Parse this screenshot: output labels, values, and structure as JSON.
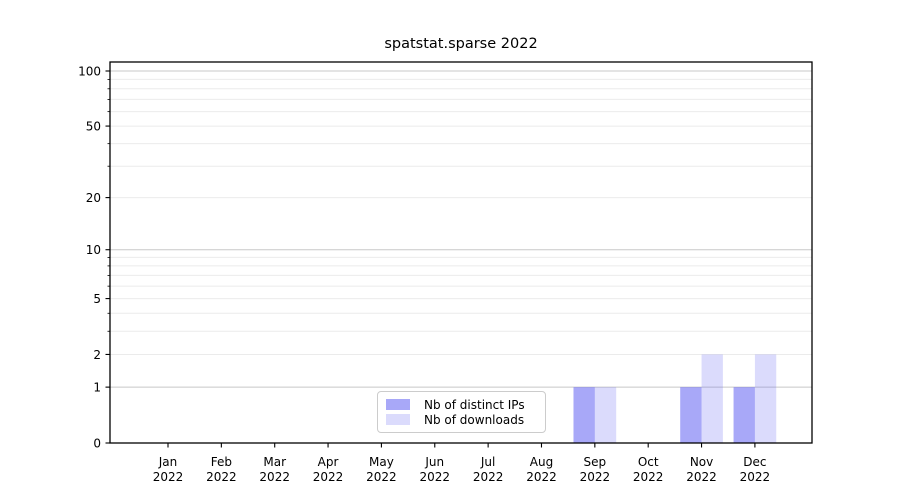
{
  "figure": {
    "background": "#ffffff"
  },
  "chart_data": {
    "type": "bar",
    "title": "spatstat.sparse 2022",
    "categories": [
      "Jan 2022",
      "Feb 2022",
      "Mar 2022",
      "Apr 2022",
      "May 2022",
      "Jun 2022",
      "Jul 2022",
      "Aug 2022",
      "Sep 2022",
      "Oct 2022",
      "Nov 2022",
      "Dec 2022"
    ],
    "series": [
      {
        "name": "Nb of distinct IPs",
        "fill": "rgba(100,100,243,0.56)",
        "values": [
          0,
          0,
          0,
          0,
          0,
          0,
          0,
          0,
          1,
          0,
          1,
          1
        ]
      },
      {
        "name": "Nb of downloads",
        "fill": "rgba(100,100,243,0.23)",
        "values": [
          0,
          0,
          0,
          0,
          0,
          0,
          0,
          0,
          1,
          0,
          2,
          2
        ]
      }
    ],
    "y_axis": {
      "scale": "log10(value+1)",
      "tick_labels": [
        0,
        1,
        2,
        5,
        10,
        20,
        50,
        100
      ],
      "major_gridlines": [
        1,
        10,
        100
      ],
      "minor_gridlines": [
        2,
        3,
        4,
        5,
        6,
        7,
        8,
        9,
        20,
        30,
        40,
        50,
        60,
        70,
        80,
        90
      ],
      "range": [
        0,
        100
      ]
    },
    "legend_position": "bottom-center-inside",
    "grid": true,
    "colors": {
      "major_grid": "#c8c8c8",
      "minor_grid": "#ebebeb",
      "axis": "#000000",
      "text": "#000000"
    }
  }
}
